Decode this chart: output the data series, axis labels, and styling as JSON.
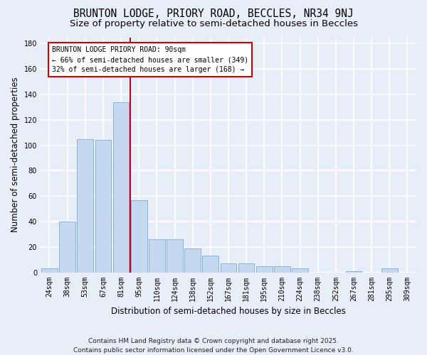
{
  "title": "BRUNTON LODGE, PRIORY ROAD, BECCLES, NR34 9NJ",
  "subtitle": "Size of property relative to semi-detached houses in Beccles",
  "xlabel": "Distribution of semi-detached houses by size in Beccles",
  "ylabel": "Number of semi-detached properties",
  "categories": [
    "24sqm",
    "38sqm",
    "53sqm",
    "67sqm",
    "81sqm",
    "95sqm",
    "110sqm",
    "124sqm",
    "138sqm",
    "152sqm",
    "167sqm",
    "181sqm",
    "195sqm",
    "210sqm",
    "224sqm",
    "238sqm",
    "252sqm",
    "267sqm",
    "281sqm",
    "295sqm",
    "309sqm"
  ],
  "values": [
    3,
    40,
    105,
    104,
    134,
    57,
    26,
    26,
    19,
    13,
    7,
    7,
    5,
    5,
    3,
    0,
    0,
    1,
    0,
    3,
    0
  ],
  "bar_color": "#c5d8f0",
  "bar_edge_color": "#7aadd4",
  "vline_color": "#cc0000",
  "annotation_title": "BRUNTON LODGE PRIORY ROAD: 90sqm",
  "annotation_line1": "← 66% of semi-detached houses are smaller (349)",
  "annotation_line2": "32% of semi-detached houses are larger (168) →",
  "annotation_box_color": "#ffffff",
  "annotation_edge_color": "#cc0000",
  "ylim": [
    0,
    185
  ],
  "yticks": [
    0,
    20,
    40,
    60,
    80,
    100,
    120,
    140,
    160,
    180
  ],
  "footer_line1": "Contains HM Land Registry data © Crown copyright and database right 2025.",
  "footer_line2": "Contains public sector information licensed under the Open Government Licence v3.0.",
  "bg_color": "#e8eef8",
  "plot_bg_color": "#e8eef8",
  "grid_color": "#ffffff",
  "title_fontsize": 10.5,
  "subtitle_fontsize": 9.5,
  "axis_label_fontsize": 8.5,
  "tick_fontsize": 7,
  "annotation_fontsize": 7,
  "footer_fontsize": 6.5
}
